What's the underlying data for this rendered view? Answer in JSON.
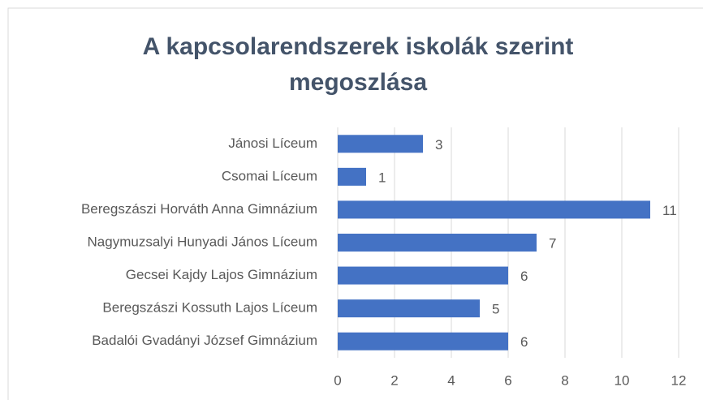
{
  "chart_data": {
    "type": "barh",
    "title": "A kapcsolarendszerek iskolák szerint megoszlása",
    "categories": [
      "Jánosi Líceum",
      "Csomai Líceum",
      "Beregszászi Horváth Anna Gimnázium",
      "Nagymuzsalyi Hunyadi János Líceum",
      "Gecsei Kajdy Lajos Gimnázium",
      "Beregszászi Kossuth Lajos Líceum",
      "Badalói Gvadányi József Gimnázium"
    ],
    "values": [
      3,
      1,
      11,
      7,
      6,
      5,
      6
    ],
    "color": "#4472c4",
    "xlim": [
      0,
      12
    ],
    "xticks": [
      0,
      2,
      4,
      6,
      8,
      10,
      12
    ],
    "grid": true,
    "data_labels": true
  }
}
